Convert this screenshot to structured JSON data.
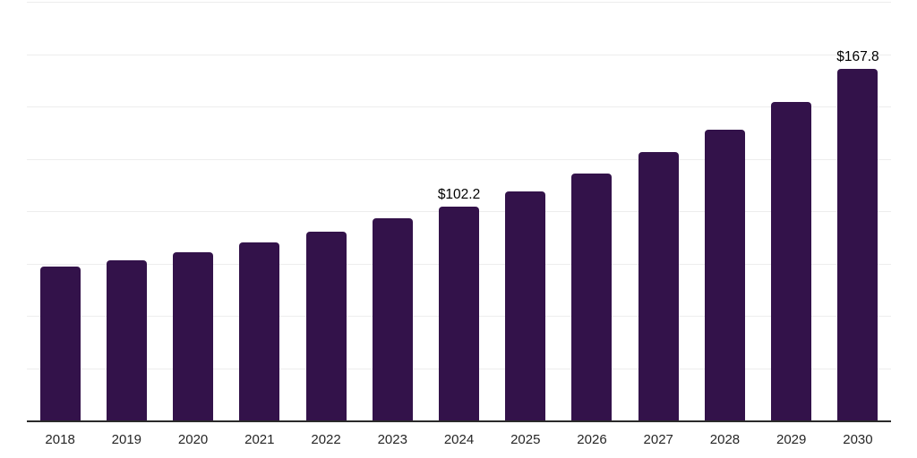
{
  "chart_data": {
    "type": "bar",
    "title": "",
    "xlabel": "",
    "ylabel": "",
    "categories": [
      "2018",
      "2019",
      "2020",
      "2021",
      "2022",
      "2023",
      "2024",
      "2025",
      "2026",
      "2027",
      "2028",
      "2029",
      "2030"
    ],
    "values": [
      73.5,
      76.3,
      80.3,
      85.0,
      90.0,
      96.5,
      102.2,
      109.3,
      118.0,
      128.2,
      139.0,
      152.0,
      167.8
    ],
    "data_labels": {
      "2024": "$102.2",
      "2030": "$167.8"
    },
    "ylim": [
      0,
      200
    ],
    "gridline_step": 25,
    "grid": true,
    "legend": false,
    "colors": {
      "bar": "#33124A",
      "axis_line": "#2a2a2a",
      "gridline": "#ededed",
      "data_label": "#000000",
      "tick_label": "#262626",
      "background": "#ffffff"
    }
  }
}
